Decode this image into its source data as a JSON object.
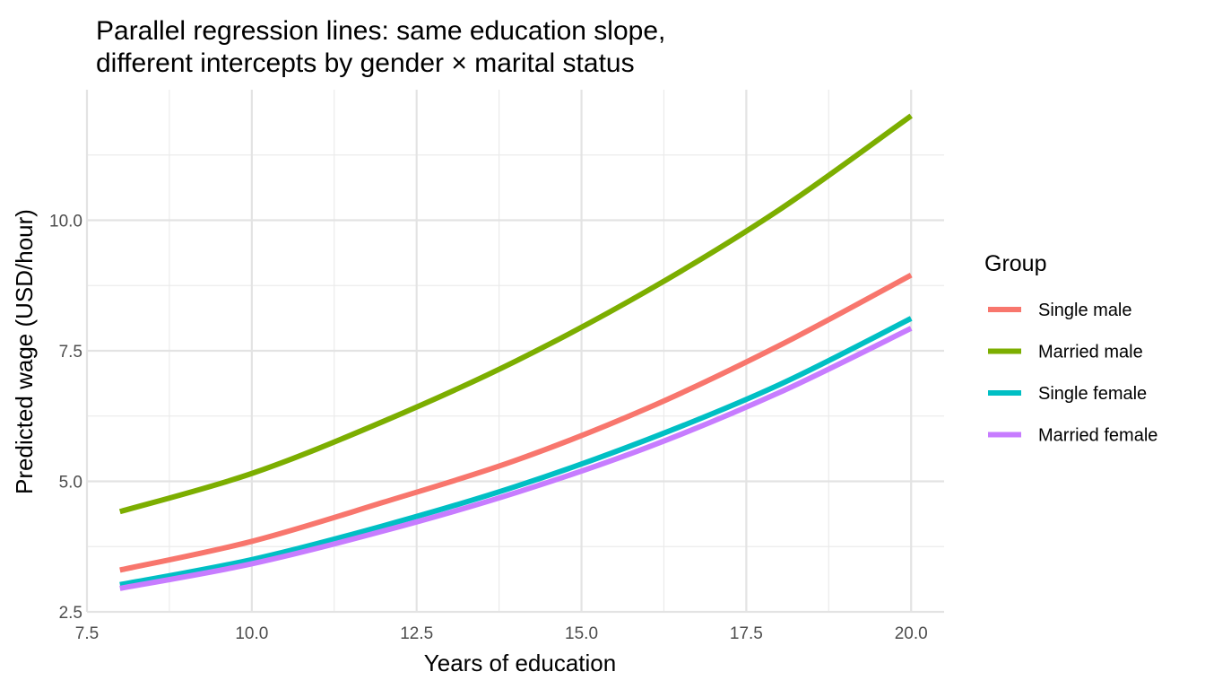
{
  "chart_data": {
    "type": "line",
    "title": [
      "Parallel regression lines: same education slope,",
      "different intercepts by gender × marital status"
    ],
    "xlabel": "Years of education",
    "ylabel": "Predicted wage (USD/hour)",
    "xlim": [
      7.5,
      20.5
    ],
    "ylim": [
      2.5,
      12.5
    ],
    "xticks": [
      7.5,
      10.0,
      12.5,
      15.0,
      17.5,
      20.0
    ],
    "xtick_labels": [
      "7.5",
      "10.0",
      "12.5",
      "15.0",
      "17.5",
      "20.0"
    ],
    "yticks": [
      2.5,
      5.0,
      7.5,
      10.0
    ],
    "ytick_labels": [
      "2.5",
      "5.0",
      "7.5",
      "10.0"
    ],
    "grid": true,
    "legend_title": "Group",
    "legend_position": "right",
    "x": [
      8,
      10,
      12,
      14,
      16,
      18,
      20
    ],
    "series": [
      {
        "name": "Single male",
        "color": "#F8766D",
        "values": [
          3.3,
          3.85,
          4.6,
          5.4,
          6.4,
          7.6,
          8.95
        ]
      },
      {
        "name": "Married male",
        "color": "#7CAE00",
        "values": [
          4.42,
          5.15,
          6.15,
          7.3,
          8.65,
          10.2,
          12.0
        ]
      },
      {
        "name": "Single female",
        "color": "#00BFC4",
        "values": [
          3.02,
          3.5,
          4.15,
          4.9,
          5.8,
          6.85,
          8.12
        ]
      },
      {
        "name": "Married female",
        "color": "#C77CFF",
        "values": [
          2.95,
          3.42,
          4.05,
          4.78,
          5.65,
          6.7,
          7.93
        ]
      }
    ]
  }
}
